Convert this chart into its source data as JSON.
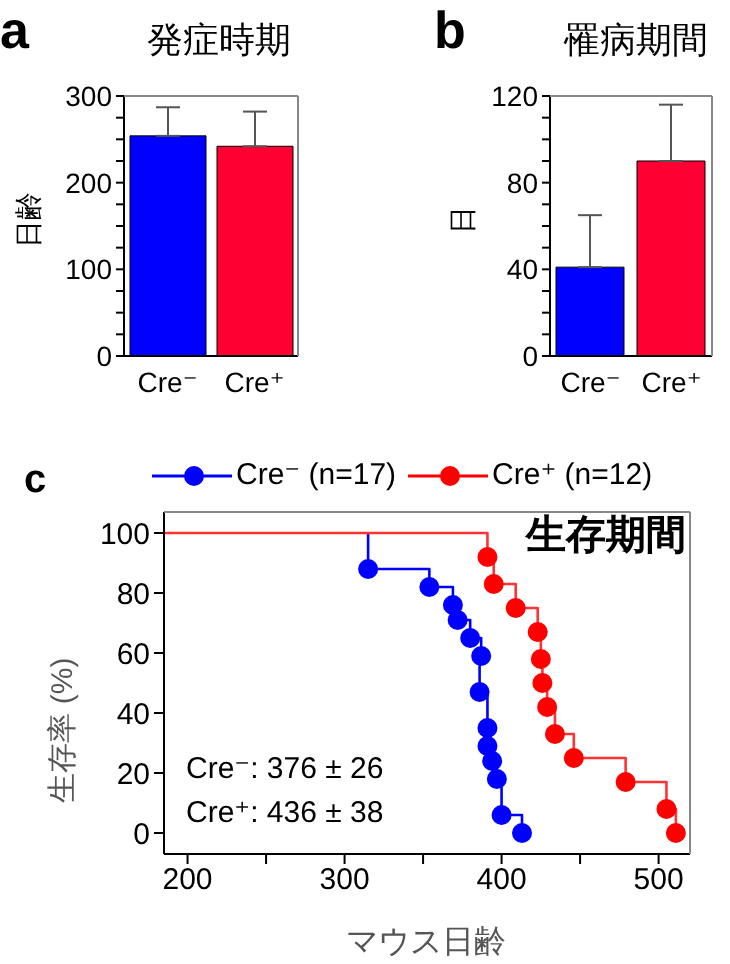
{
  "chart_data": [
    {
      "type": "bar",
      "title": "発症時期",
      "ylabel": "日齢",
      "annotations": [
        "a"
      ],
      "categories": [
        "Cre⁻",
        "Cre⁺"
      ],
      "values": [
        254,
        242
      ],
      "colors": [
        "#0000ff",
        "#ff0033"
      ],
      "errors": [
        [
          254,
          287
        ],
        [
          242,
          282
        ]
      ],
      "ylim": [
        0,
        300
      ],
      "yticks": [
        0,
        {
          "value": 25,
          "label": null
        },
        {
          "value": 50,
          "label": null
        },
        {
          "value": 75,
          "label": null
        },
        100,
        {
          "value": 125,
          "label": null
        },
        {
          "value": 150,
          "label": null
        },
        {
          "value": 175,
          "label": null
        },
        200,
        {
          "value": 225,
          "label": null
        },
        {
          "value": 250,
          "label": null
        },
        {
          "value": 275,
          "label": null
        },
        300
      ]
    },
    {
      "type": "bar",
      "title": "罹病期間",
      "ylabel": "日",
      "annotations": [
        "b"
      ],
      "categories": [
        "Cre⁻",
        "Cre⁺"
      ],
      "values": [
        41,
        90
      ],
      "colors": [
        "#0000ff",
        "#ff0033"
      ],
      "errors": [
        [
          41,
          65
        ],
        [
          90,
          116
        ]
      ],
      "ylim": [
        0,
        120
      ],
      "yticks": [
        0,
        {
          "value": 10,
          "label": null
        },
        {
          "value": 20,
          "label": null
        },
        {
          "value": 30,
          "label": null
        },
        40,
        {
          "value": 50,
          "label": null
        },
        {
          "value": 60,
          "label": null
        },
        {
          "value": 70,
          "label": null
        },
        80,
        {
          "value": 90,
          "label": null
        },
        {
          "value": 100,
          "label": null
        },
        {
          "value": 110,
          "label": null
        },
        120
      ]
    },
    {
      "type": "step",
      "ylabel": "生存率 (%)",
      "xlabel": "マウス日齢",
      "annotations": [
        "c",
        "生存期間",
        "Cre⁻: 376 ± 26",
        "Cre⁺: 436 ± 38"
      ],
      "legend": "top",
      "xlim": [
        185,
        520
      ],
      "ylim": [
        -7,
        107
      ],
      "xticks": [
        200,
        {
          "value": 250,
          "label": null
        },
        300,
        {
          "value": 350,
          "label": null
        },
        400,
        {
          "value": 450,
          "label": null
        },
        500
      ],
      "yticks": [
        0,
        20,
        40,
        60,
        80,
        100
      ],
      "series": [
        {
          "type": "step",
          "marker": "none",
          "color": "#0000ff",
          "x": [
            315,
            315,
            354,
            369,
            372,
            380,
            387,
            386,
            391,
            391,
            394,
            397,
            400,
            413
          ],
          "values": [
            100,
            88,
            82,
            76,
            71,
            65,
            59,
            47,
            35,
            29,
            24,
            18,
            6,
            0
          ]
        },
        {
          "type": "step",
          "marker": "none",
          "color": "#ff3333",
          "x": [
            185,
            391,
            395,
            409,
            423,
            425,
            426,
            429,
            434,
            446,
            479,
            505,
            511
          ],
          "values": [
            100,
            92,
            83,
            75,
            67,
            58,
            50,
            42,
            33,
            25,
            17,
            8,
            0
          ]
        },
        {
          "type": "scatter",
          "marker": "circle",
          "name": "Cre⁻ (n=17)",
          "color": "#0000ff",
          "x": [
            315,
            354,
            369,
            372,
            380,
            387,
            386,
            391,
            391,
            394,
            397,
            400,
            413
          ],
          "values": [
            88,
            82,
            76,
            71,
            65,
            59,
            47,
            35,
            29,
            24,
            18,
            6,
            0
          ]
        },
        {
          "type": "scatter",
          "marker": "circle",
          "name": "Cre⁺ (n=12)",
          "color": "#ff0000",
          "x": [
            391,
            395,
            409,
            423,
            425,
            426,
            429,
            434,
            446,
            479,
            505,
            511
          ],
          "values": [
            92,
            83,
            75,
            67,
            58,
            50,
            42,
            33,
            25,
            17,
            8,
            0
          ]
        }
      ]
    }
  ]
}
